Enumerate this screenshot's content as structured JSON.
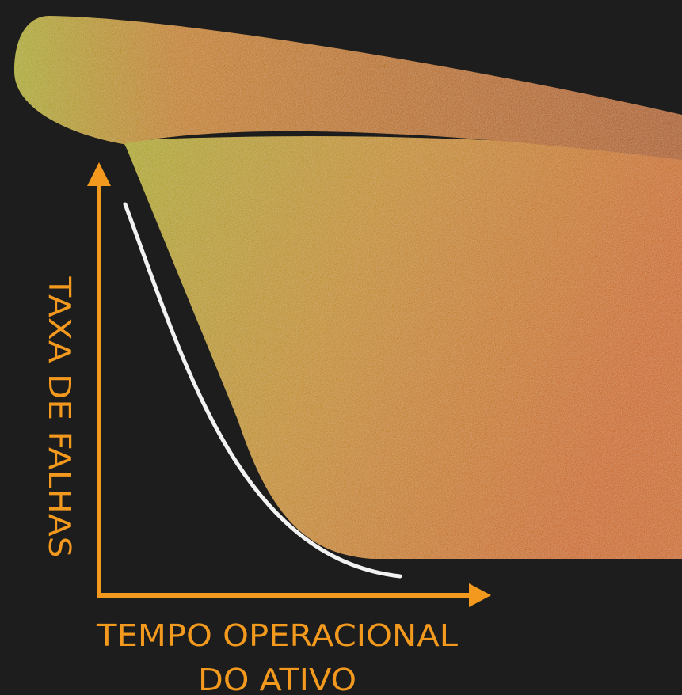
{
  "axis": {
    "y_label": "TAXA DE FALHAS",
    "x_label": [
      "TEMPO OPERACIONAL",
      "DO ATIVO"
    ]
  }
}
